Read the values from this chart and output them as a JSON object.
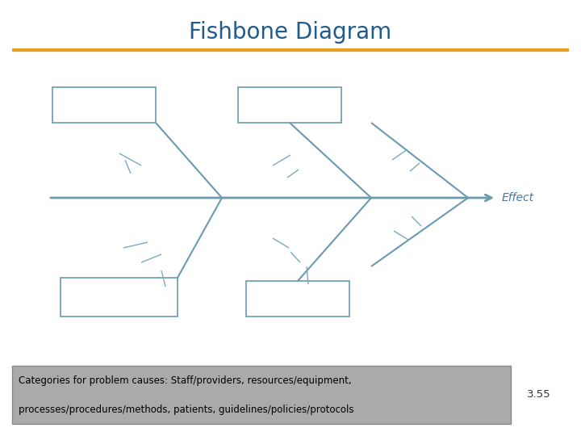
{
  "title": "Fishbone Diagram",
  "title_color": "#1F5C8B",
  "title_fontsize": 20,
  "title_fontweight": "normal",
  "gold_line_color": "#E8A020",
  "spine_color": "#6A9AB0",
  "bone_color": "#6A9AB0",
  "sub_bone_color": "#7AAABB",
  "box_edge_color": "#6A9AB0",
  "box_face_color": "white",
  "effect_label": "Effect",
  "effect_color": "#4A7A9B",
  "caption_text_line1": "Categories for problem causes: Staff/providers, resources/equipment,",
  "caption_text_line2": "processes/procedures/methods, patients, guidelines/policies/protocols",
  "caption_bg_color": "#AAAAAA",
  "caption_text_color": "black",
  "page_number": "3.55",
  "background_color": "white"
}
